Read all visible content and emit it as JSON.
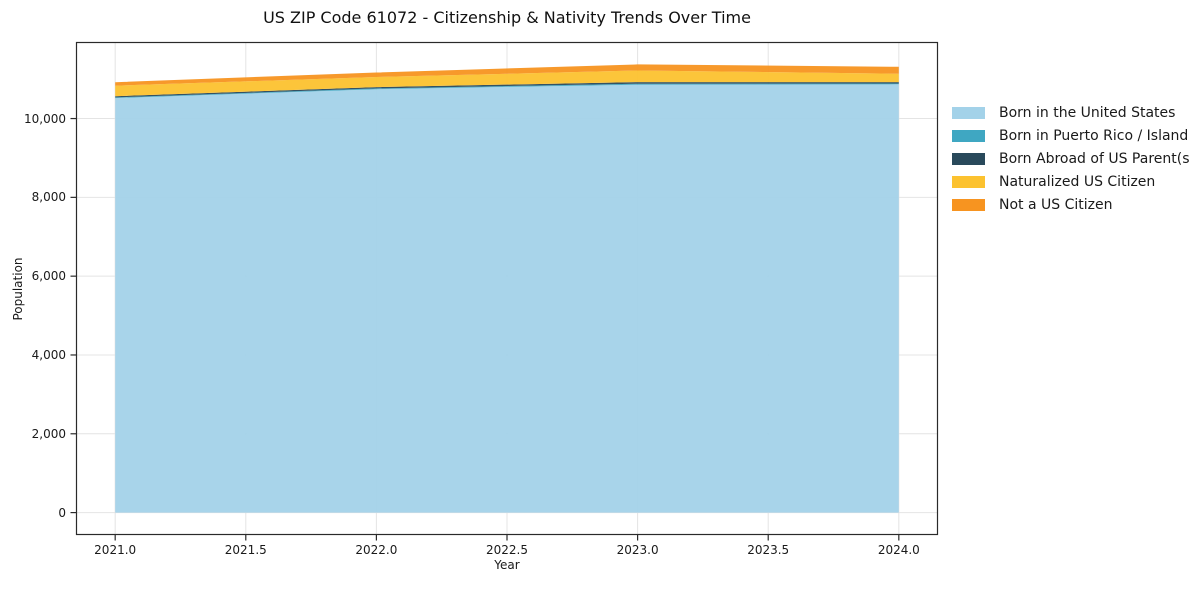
{
  "chart_data": {
    "type": "area",
    "stacked": true,
    "title": "US ZIP Code 61072 - Citizenship & Nativity Trends Over Time",
    "xlabel": "Year",
    "ylabel": "Population",
    "x": [
      2021,
      2022,
      2023,
      2024
    ],
    "series": [
      {
        "name": "Born in the United States",
        "color": "#A3D2E9",
        "values": [
          10520,
          10745,
          10860,
          10870
        ]
      },
      {
        "name": "Born in Puerto Rico / Islands",
        "color": "#3FA7C2",
        "values": [
          18,
          20,
          24,
          20
        ]
      },
      {
        "name": "Born Abroad of US Parent(s)",
        "color": "#29495B",
        "values": [
          30,
          34,
          40,
          34
        ]
      },
      {
        "name": "Naturalized US Citizen",
        "color": "#FCC22F",
        "values": [
          265,
          255,
          295,
          215
        ]
      },
      {
        "name": "Not a US Citizen",
        "color": "#F79420",
        "values": [
          90,
          115,
          155,
          175
        ]
      }
    ],
    "xticks": {
      "values": [
        2021.0,
        2021.5,
        2022.0,
        2022.5,
        2023.0,
        2023.5,
        2024.0
      ],
      "labels": [
        "2021.0",
        "2021.5",
        "2022.0",
        "2022.5",
        "2023.0",
        "2023.5",
        "2024.0"
      ]
    },
    "yticks": {
      "values": [
        0,
        2000,
        4000,
        6000,
        8000,
        10000
      ],
      "labels": [
        "0",
        "2,000",
        "4,000",
        "6,000",
        "8,000",
        "10,000"
      ]
    },
    "xlim": [
      2020.85,
      2024.15
    ],
    "ylim": [
      -568.7,
      11942.7
    ],
    "grid": true,
    "grid_color": "#e4e4e4",
    "spine_color": "#2a2a2a",
    "legend_position": "outside-right"
  }
}
